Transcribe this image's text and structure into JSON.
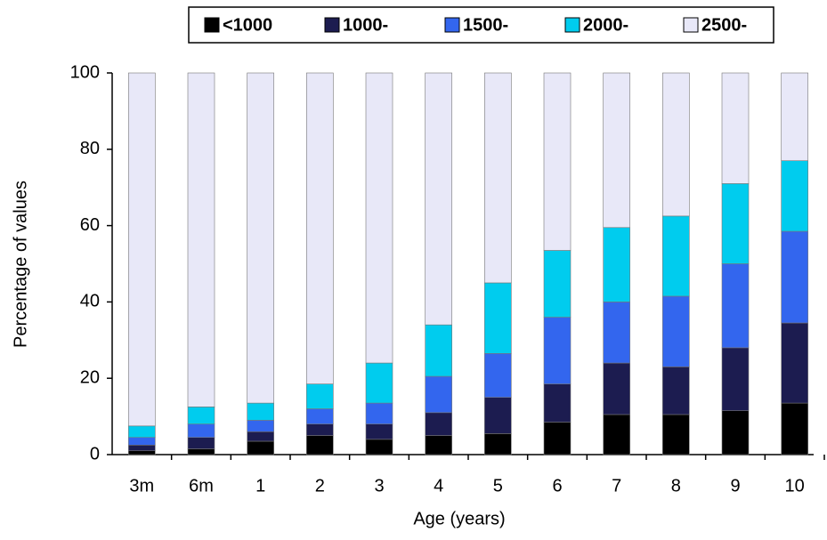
{
  "chart_data": {
    "type": "stacked_bar",
    "x_label": "Age (years)",
    "y_label": "Percentage of values",
    "categories": [
      "3m",
      "6m",
      "1",
      "2",
      "3",
      "4",
      "5",
      "6",
      "7",
      "8",
      "9",
      "10"
    ],
    "series": [
      {
        "name": "<1000",
        "color": "#000000",
        "values": [
          1,
          1.5,
          3.5,
          5,
          4,
          5,
          5.5,
          8.5,
          10.5,
          10.5,
          11.5,
          13.5
        ]
      },
      {
        "name": "1000-",
        "color": "#1c1c50",
        "values": [
          1.5,
          3,
          2.5,
          3,
          4,
          6,
          9.5,
          10,
          13.5,
          12.5,
          16.5,
          21
        ]
      },
      {
        "name": "1500-",
        "color": "#3366ee",
        "values": [
          2,
          3.5,
          3,
          4,
          5.5,
          9.5,
          11.5,
          17.5,
          16,
          18.5,
          22,
          24
        ]
      },
      {
        "name": "2000-",
        "color": "#00ccee",
        "values": [
          3,
          4.5,
          4.5,
          6.5,
          10.5,
          13.5,
          18.5,
          17.5,
          19.5,
          21,
          21,
          18.5
        ]
      },
      {
        "name": "2500-",
        "color": "#e8e8f8",
        "values": [
          92.5,
          87.5,
          86.5,
          81.5,
          76,
          66,
          55,
          46.5,
          40.5,
          37.5,
          29,
          23
        ]
      }
    ],
    "ylim": [
      0,
      100
    ],
    "yticks": [
      0,
      20,
      40,
      60,
      80,
      100
    ],
    "grid": false,
    "legend": "top"
  }
}
